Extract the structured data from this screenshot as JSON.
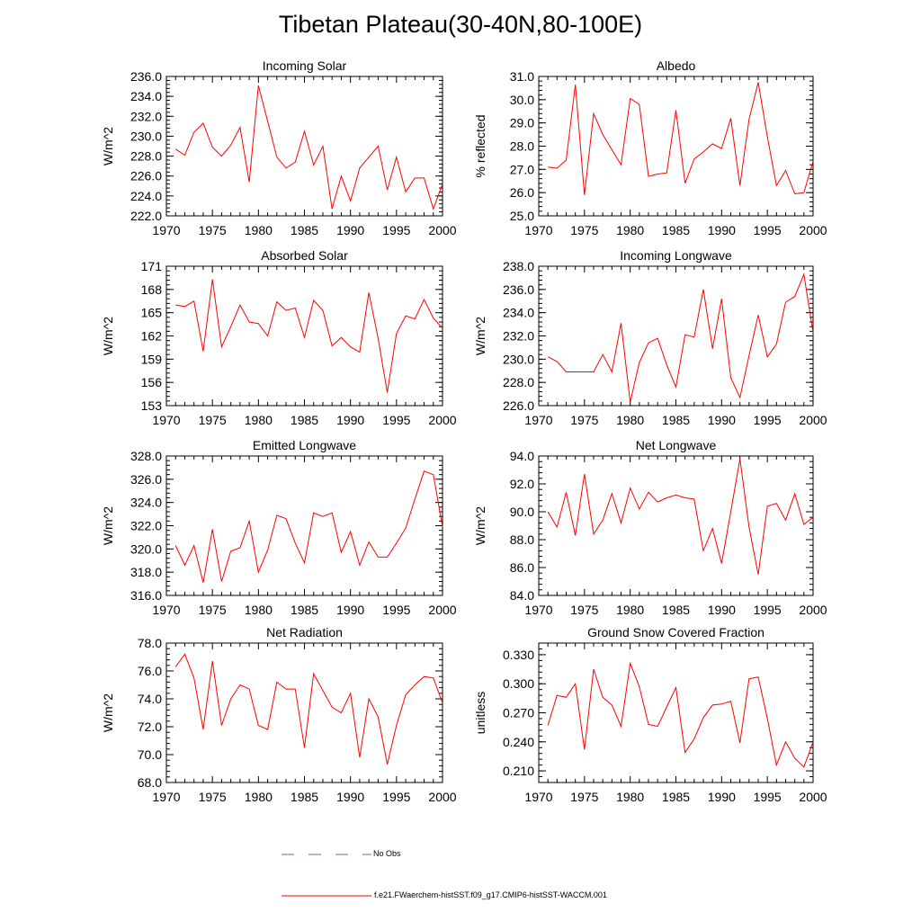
{
  "page": {
    "title": "Tibetan Plateau(30-40N,80-100E)"
  },
  "legend": {
    "obs_label": "No Obs",
    "model_label": "f.e21.FWaerchem-histSST.f09_g17.CMIP6-histSST-WACCM.001",
    "obs_color": "#5a6fb0",
    "model_color": "#ff0000"
  },
  "chart_data": [
    {
      "type": "line",
      "title": "Incoming Solar",
      "ylabel": "W/m^2",
      "xlim": [
        1970,
        2000
      ],
      "ylim": [
        222.0,
        236.0
      ],
      "xticks": [
        "1970",
        "1975",
        "1980",
        "1985",
        "1990",
        "1995",
        "2000"
      ],
      "yticks": [
        "222.0",
        "224.0",
        "226.0",
        "228.0",
        "230.0",
        "232.0",
        "234.0",
        "236.0"
      ],
      "x": [
        1971,
        1972,
        1973,
        1974,
        1975,
        1976,
        1977,
        1978,
        1979,
        1980,
        1981,
        1982,
        1983,
        1984,
        1985,
        1986,
        1987,
        1988,
        1989,
        1990,
        1991,
        1992,
        1993,
        1994,
        1995,
        1996,
        1997,
        1998,
        1999,
        2000
      ],
      "values": [
        228.7,
        228.1,
        230.4,
        231.3,
        228.9,
        228.0,
        229.1,
        230.9,
        225.4,
        235.1,
        231.5,
        227.9,
        226.8,
        227.4,
        230.5,
        227.1,
        229.0,
        222.7,
        226.0,
        223.5,
        226.8,
        227.9,
        229.0,
        224.6,
        227.9,
        224.4,
        225.8,
        225.8,
        222.7,
        225.2
      ],
      "series_color": "#ff0000"
    },
    {
      "type": "line",
      "title": "Albedo",
      "ylabel": "% reflected",
      "xlim": [
        1970,
        2000
      ],
      "ylim": [
        25.0,
        31.0
      ],
      "xticks": [
        "1970",
        "1975",
        "1980",
        "1985",
        "1990",
        "1995",
        "2000"
      ],
      "yticks": [
        "25.0",
        "26.0",
        "27.0",
        "28.0",
        "29.0",
        "30.0",
        "31.0"
      ],
      "x": [
        1971,
        1972,
        1973,
        1974,
        1975,
        1976,
        1977,
        1978,
        1979,
        1980,
        1981,
        1982,
        1983,
        1984,
        1985,
        1986,
        1987,
        1988,
        1989,
        1990,
        1991,
        1992,
        1993,
        1994,
        1995,
        1996,
        1997,
        1998,
        1999,
        2000
      ],
      "values": [
        27.1,
        27.05,
        27.4,
        30.65,
        25.9,
        29.4,
        28.5,
        27.85,
        27.2,
        30.05,
        29.8,
        26.7,
        26.8,
        26.85,
        29.55,
        26.4,
        27.45,
        27.75,
        28.1,
        27.9,
        29.2,
        26.3,
        29.15,
        30.75,
        28.4,
        26.3,
        26.95,
        25.95,
        26.0,
        27.35
      ],
      "series_color": "#ff0000"
    },
    {
      "type": "line",
      "title": "Absorbed Solar",
      "ylabel": "W/m^2",
      "xlim": [
        1970,
        2000
      ],
      "ylim": [
        153,
        171
      ],
      "xticks": [
        "1970",
        "1975",
        "1980",
        "1985",
        "1990",
        "1995",
        "2000"
      ],
      "yticks": [
        "153",
        "156",
        "159",
        "162",
        "165",
        "168",
        "171"
      ],
      "x": [
        1971,
        1972,
        1973,
        1974,
        1975,
        1976,
        1977,
        1978,
        1979,
        1980,
        1981,
        1982,
        1983,
        1984,
        1985,
        1986,
        1987,
        1988,
        1989,
        1990,
        1991,
        1992,
        1993,
        1994,
        1995,
        1996,
        1997,
        1998,
        1999,
        2000
      ],
      "values": [
        166.0,
        165.8,
        166.5,
        160.0,
        169.3,
        160.6,
        163.2,
        166.0,
        163.8,
        163.6,
        162.0,
        166.4,
        165.3,
        165.6,
        161.8,
        166.6,
        165.3,
        160.7,
        161.8,
        160.6,
        159.9,
        167.6,
        161.7,
        154.7,
        162.3,
        164.6,
        164.2,
        166.7,
        164.3,
        163.0
      ],
      "series_color": "#ff0000"
    },
    {
      "type": "line",
      "title": "Incoming Longwave",
      "ylabel": "W/m^2",
      "xlim": [
        1970,
        2000
      ],
      "ylim": [
        226.0,
        238.0
      ],
      "xticks": [
        "1970",
        "1975",
        "1980",
        "1985",
        "1990",
        "1995",
        "2000"
      ],
      "yticks": [
        "226.0",
        "228.0",
        "230.0",
        "232.0",
        "234.0",
        "236.0",
        "238.0"
      ],
      "x": [
        1971,
        1972,
        1973,
        1974,
        1975,
        1976,
        1977,
        1978,
        1979,
        1980,
        1981,
        1982,
        1983,
        1984,
        1985,
        1986,
        1987,
        1988,
        1989,
        1990,
        1991,
        1992,
        1993,
        1994,
        1995,
        1996,
        1997,
        1998,
        1999,
        2000
      ],
      "values": [
        230.2,
        229.8,
        228.9,
        228.9,
        228.9,
        228.9,
        230.4,
        228.9,
        233.1,
        226.3,
        229.7,
        231.4,
        231.8,
        229.5,
        227.6,
        232.1,
        231.9,
        236.0,
        230.9,
        235.2,
        228.4,
        226.7,
        230.3,
        233.8,
        230.2,
        231.3,
        234.9,
        235.4,
        237.3,
        232.3
      ],
      "series_color": "#ff0000"
    },
    {
      "type": "line",
      "title": "Emitted Longwave",
      "ylabel": "W/m^2",
      "xlim": [
        1970,
        2000
      ],
      "ylim": [
        316.0,
        328.0
      ],
      "xticks": [
        "1970",
        "1975",
        "1980",
        "1985",
        "1990",
        "1995",
        "2000"
      ],
      "yticks": [
        "316.0",
        "318.0",
        "320.0",
        "322.0",
        "324.0",
        "326.0",
        "328.0"
      ],
      "x": [
        1971,
        1972,
        1973,
        1974,
        1975,
        1976,
        1977,
        1978,
        1979,
        1980,
        1981,
        1982,
        1983,
        1984,
        1985,
        1986,
        1987,
        1988,
        1989,
        1990,
        1991,
        1992,
        1993,
        1994,
        1995,
        1996,
        1997,
        1998,
        1999,
        2000
      ],
      "values": [
        320.3,
        318.6,
        320.3,
        317.1,
        321.7,
        317.2,
        319.8,
        320.1,
        322.4,
        318.0,
        319.9,
        322.9,
        322.6,
        320.5,
        318.8,
        323.1,
        322.8,
        323.1,
        319.7,
        321.5,
        318.6,
        320.6,
        319.3,
        319.3,
        320.5,
        321.8,
        324.3,
        326.7,
        326.4,
        321.9
      ],
      "series_color": "#ff0000"
    },
    {
      "type": "line",
      "title": "Net Longwave",
      "ylabel": "W/m^2",
      "xlim": [
        1970,
        2000
      ],
      "ylim": [
        84.0,
        94.0
      ],
      "xticks": [
        "1970",
        "1975",
        "1980",
        "1985",
        "1990",
        "1995",
        "2000"
      ],
      "yticks": [
        "84.0",
        "86.0",
        "88.0",
        "90.0",
        "92.0",
        "94.0"
      ],
      "x": [
        1971,
        1972,
        1973,
        1974,
        1975,
        1976,
        1977,
        1978,
        1979,
        1980,
        1981,
        1982,
        1983,
        1984,
        1985,
        1986,
        1987,
        1988,
        1989,
        1990,
        1991,
        1992,
        1993,
        1994,
        1995,
        1996,
        1997,
        1998,
        1999,
        2000
      ],
      "values": [
        90.0,
        88.9,
        91.4,
        88.3,
        92.7,
        88.4,
        89.4,
        91.3,
        89.2,
        91.7,
        90.2,
        91.4,
        90.7,
        91.0,
        91.2,
        91.0,
        90.9,
        87.2,
        88.8,
        86.3,
        90.0,
        93.8,
        88.9,
        85.5,
        90.4,
        90.6,
        89.4,
        91.3,
        89.1,
        89.6
      ],
      "series_color": "#ff0000"
    },
    {
      "type": "line",
      "title": "Net Radiation",
      "ylabel": "W/m^2",
      "xlim": [
        1970,
        2000
      ],
      "ylim": [
        68.0,
        78.0
      ],
      "xticks": [
        "1970",
        "1975",
        "1980",
        "1985",
        "1990",
        "1995",
        "2000"
      ],
      "yticks": [
        "68.0",
        "70.0",
        "72.0",
        "74.0",
        "76.0",
        "78.0"
      ],
      "x": [
        1971,
        1972,
        1973,
        1974,
        1975,
        1976,
        1977,
        1978,
        1979,
        1980,
        1981,
        1982,
        1983,
        1984,
        1985,
        1986,
        1987,
        1988,
        1989,
        1990,
        1991,
        1992,
        1993,
        1994,
        1995,
        1996,
        1997,
        1998,
        1999,
        2000
      ],
      "values": [
        76.3,
        77.2,
        75.5,
        71.8,
        76.7,
        72.1,
        74.0,
        75.0,
        74.7,
        72.1,
        71.8,
        75.2,
        74.7,
        74.7,
        70.5,
        75.8,
        74.6,
        73.4,
        73.0,
        74.4,
        69.8,
        74.0,
        72.7,
        69.3,
        72.1,
        74.3,
        75.0,
        75.6,
        75.5,
        73.7
      ],
      "series_color": "#ff0000"
    },
    {
      "type": "line",
      "title": "Ground Snow Covered Fraction",
      "ylabel": "unitless",
      "xlim": [
        1970,
        2000
      ],
      "ylim": [
        0.198,
        0.342
      ],
      "xticks": [
        "1970",
        "1975",
        "1980",
        "1985",
        "1990",
        "1995",
        "2000"
      ],
      "yticks": [
        "0.210",
        "0.240",
        "0.270",
        "0.300",
        "0.330"
      ],
      "ytick_values": [
        0.21,
        0.24,
        0.27,
        0.3,
        0.33
      ],
      "x": [
        1971,
        1972,
        1973,
        1974,
        1975,
        1976,
        1977,
        1978,
        1979,
        1980,
        1981,
        1982,
        1983,
        1984,
        1985,
        1986,
        1987,
        1988,
        1989,
        1990,
        1991,
        1992,
        1993,
        1994,
        1995,
        1996,
        1997,
        1998,
        1999,
        2000
      ],
      "values": [
        0.257,
        0.288,
        0.286,
        0.3,
        0.232,
        0.315,
        0.286,
        0.278,
        0.256,
        0.321,
        0.297,
        0.258,
        0.256,
        0.276,
        0.296,
        0.229,
        0.243,
        0.265,
        0.278,
        0.279,
        0.282,
        0.239,
        0.305,
        0.307,
        0.264,
        0.216,
        0.24,
        0.223,
        0.214,
        0.24
      ],
      "series_color": "#ff0000"
    }
  ]
}
